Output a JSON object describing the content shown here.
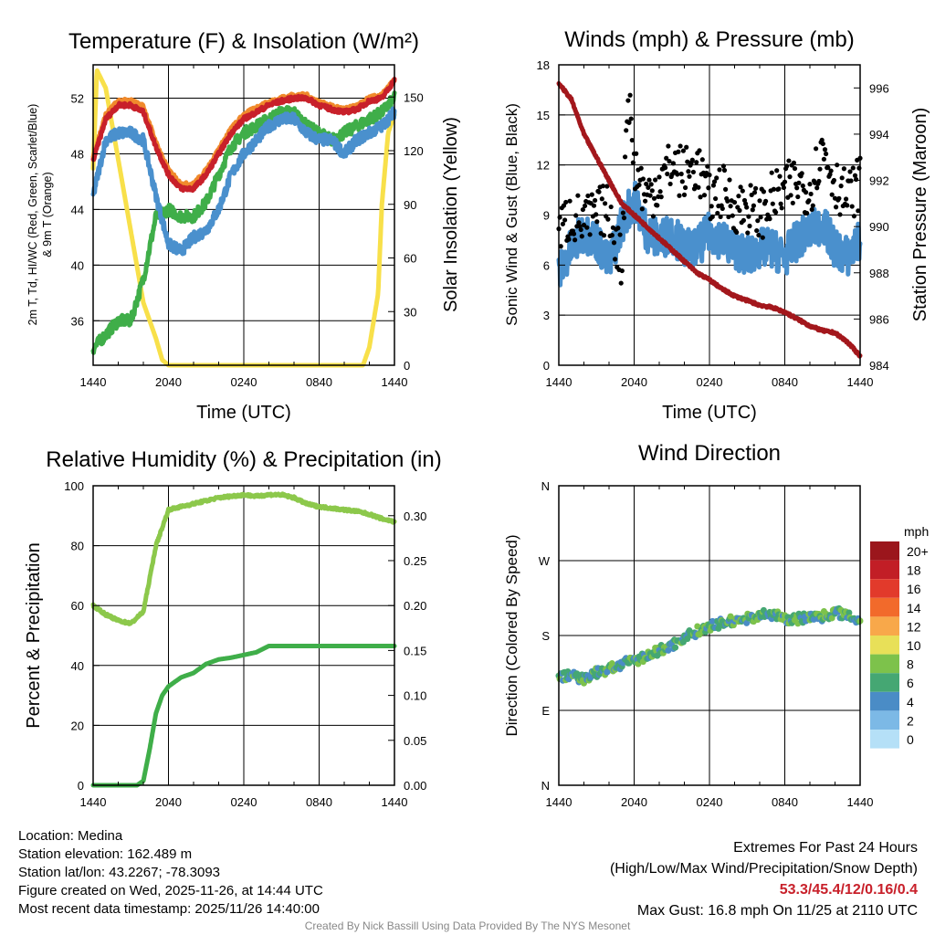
{
  "chart_data": [
    {
      "type": "line",
      "title": "Temperature (F) & Insolation (W/m²)",
      "xlabel": "Time (UTC)",
      "ylabel": [
        "2m T, Td, HI/WC (Red, Green, Scarlet/Blue)",
        "& 9m T (Orange)"
      ],
      "y2label": "Solar Insolation (Yellow)",
      "xticks": [
        "1440",
        "2040",
        "0240",
        "0840",
        "1440"
      ],
      "xrange_hours": [
        0,
        24
      ],
      "ylim": [
        32.8,
        54.4
      ],
      "yticks": [
        36,
        40,
        44,
        48,
        52
      ],
      "y2lim": [
        0,
        168
      ],
      "y2ticks": [
        0,
        30,
        60,
        90,
        120,
        150
      ],
      "grid": true,
      "series": [
        {
          "name": "Solar Insolation",
          "axis": "right",
          "color": "#f8e04a",
          "x": [
            0,
            0.3,
            1,
            2,
            3,
            4,
            5,
            5.5,
            6,
            21.5,
            22,
            22.7,
            23,
            23.5,
            24
          ],
          "values": [
            110,
            165,
            155,
            115,
            75,
            35,
            15,
            3,
            0,
            0,
            10,
            40,
            90,
            130,
            140
          ]
        },
        {
          "name": "HI/WC",
          "axis": "left",
          "color": "#3fae49",
          "x": [
            0,
            1,
            2,
            3,
            4,
            5,
            6,
            7,
            8,
            9,
            10,
            11,
            12,
            13,
            14,
            15,
            16,
            17,
            18,
            19,
            20,
            21,
            22,
            23,
            24
          ],
          "values": [
            34,
            35,
            36,
            36,
            39,
            43.5,
            44,
            43.5,
            43.5,
            44.5,
            46.5,
            48.5,
            49.5,
            50,
            50.5,
            51,
            51,
            50,
            49.5,
            49,
            49.5,
            50,
            50.5,
            51,
            52
          ]
        },
        {
          "name": "Dew Point",
          "axis": "left",
          "color": "#4a90cd",
          "x": [
            0,
            1,
            2,
            3,
            4,
            5,
            6,
            7,
            8,
            9,
            10,
            11,
            12,
            13,
            14,
            15,
            16,
            17,
            18,
            19,
            20,
            21,
            22,
            23,
            24
          ],
          "values": [
            45,
            49,
            49.5,
            49.5,
            49,
            45,
            41.5,
            41,
            42,
            42.5,
            44,
            46.5,
            48,
            49,
            50,
            50.5,
            50.5,
            49.5,
            49,
            49,
            48,
            49,
            49.5,
            50,
            51
          ]
        },
        {
          "name": "9m T",
          "axis": "left",
          "color": "#f08a2c",
          "x": [
            0,
            1,
            2,
            3,
            4,
            5,
            6,
            7,
            8,
            9,
            10,
            11,
            12,
            13,
            14,
            15,
            16,
            17,
            18,
            19,
            20,
            21,
            22,
            23,
            24
          ],
          "values": [
            47.8,
            50.8,
            51.8,
            51.8,
            51.4,
            48.8,
            46.8,
            45.8,
            45.8,
            46.8,
            48.3,
            49.8,
            50.8,
            51.3,
            51.7,
            52,
            52.2,
            52.2,
            51.7,
            51.4,
            51.2,
            51.4,
            52,
            52.2,
            53.3
          ]
        },
        {
          "name": "2m T",
          "axis": "left",
          "color": "#c8202a",
          "x": [
            0,
            1,
            2,
            3,
            4,
            5,
            6,
            7,
            8,
            9,
            10,
            11,
            12,
            13,
            14,
            15,
            16,
            17,
            18,
            19,
            20,
            21,
            22,
            23,
            24
          ],
          "values": [
            47.5,
            50.5,
            51.5,
            51.5,
            51,
            48.5,
            46.5,
            45.5,
            45.5,
            46.5,
            48,
            49.5,
            50.5,
            51,
            51.5,
            51.8,
            52,
            52,
            51.5,
            51.2,
            51,
            51.2,
            51.8,
            52,
            53.3
          ]
        }
      ]
    },
    {
      "type": "line",
      "title": "Winds (mph) & Pressure (mb)",
      "xlabel": "Time (UTC)",
      "ylabel": "Sonic Wind & Gust (Blue, Black)",
      "y2label": "Station Pressure (Maroon)",
      "xticks": [
        "1440",
        "2040",
        "0240",
        "0840",
        "1440"
      ],
      "xrange_hours": [
        0,
        24
      ],
      "ylim": [
        0,
        18
      ],
      "yticks": [
        0,
        3,
        6,
        9,
        12,
        15,
        18
      ],
      "y2lim": [
        984,
        997
      ],
      "y2ticks": [
        984,
        986,
        988,
        990,
        992,
        994,
        996
      ],
      "grid": true,
      "series": [
        {
          "name": "Sonic Wind",
          "axis": "left",
          "color": "#4a90cd",
          "x": [
            0,
            1,
            2,
            3,
            4,
            5,
            6,
            7,
            8,
            9,
            10,
            11,
            12,
            13,
            14,
            15,
            16,
            17,
            18,
            19,
            20,
            21,
            22,
            23,
            24
          ],
          "values": [
            5.5,
            7,
            8,
            7.5,
            6,
            8.5,
            10,
            8,
            7.5,
            8,
            7,
            7,
            8,
            7.5,
            7,
            6.5,
            7,
            7,
            6.5,
            7.5,
            8,
            8.5,
            7,
            6.5,
            7.5
          ]
        },
        {
          "name": "Gust",
          "axis": "left",
          "color": "#000000",
          "marker": "dot",
          "x": [
            0,
            1,
            2,
            3,
            4,
            5,
            5.5,
            6,
            7,
            8,
            9,
            10,
            11,
            12,
            13,
            14,
            15,
            16,
            17,
            18,
            19,
            20,
            21,
            22,
            23,
            24
          ],
          "values": [
            8,
            9,
            8.5,
            9,
            9.5,
            6,
            16.8,
            12,
            10,
            11,
            12,
            11.5,
            12,
            10,
            10.5,
            9.5,
            9.5,
            9,
            10,
            10.5,
            11,
            10.5,
            13,
            11,
            10,
            11
          ]
        },
        {
          "name": "Station Pressure",
          "axis": "right",
          "color": "#a3171c",
          "x": [
            0,
            1,
            2,
            3,
            4,
            5,
            6,
            7,
            8,
            9,
            10,
            11,
            12,
            13,
            14,
            15,
            16,
            17,
            18,
            19,
            20,
            21,
            22,
            23,
            24
          ],
          "values": [
            996.2,
            995.5,
            994,
            993,
            992,
            991,
            990.5,
            990,
            989.5,
            989,
            988.5,
            988,
            987.7,
            987.3,
            987,
            986.8,
            986.6,
            986.5,
            986.3,
            986,
            985.7,
            985.5,
            985.4,
            985,
            984.4
          ]
        }
      ]
    },
    {
      "type": "line",
      "title": "Relative Humidity (%) & Precipitation (in)",
      "xlabel": "",
      "ylabel": "Percent & Precipitation",
      "xticks": [
        "1440",
        "2040",
        "0240",
        "0840",
        "1440"
      ],
      "xrange_hours": [
        0,
        24
      ],
      "ylim": [
        0,
        100
      ],
      "yticks": [
        0,
        20,
        40,
        60,
        80,
        100
      ],
      "y2lim": [
        0,
        0.3333
      ],
      "y2ticks": [
        "0.00",
        "0.05",
        "0.10",
        "0.15",
        "0.20",
        "0.25",
        "0.30"
      ],
      "grid": true,
      "series": [
        {
          "name": "Relative Humidity",
          "axis": "left",
          "color": "#8cc84b",
          "x": [
            0,
            1,
            2,
            3,
            4,
            5,
            6,
            7,
            8,
            9,
            10,
            11,
            12,
            13,
            14,
            15,
            16,
            17,
            18,
            19,
            20,
            21,
            22,
            23,
            24
          ],
          "values": [
            60,
            57,
            55,
            54,
            58,
            80,
            92,
            93,
            94,
            95,
            96,
            96.5,
            97,
            96.5,
            97,
            97,
            96,
            94,
            93,
            92.5,
            92,
            91.5,
            90.5,
            89,
            88
          ]
        },
        {
          "name": "Precipitation",
          "axis": "right",
          "color": "#3fae49",
          "x": [
            0,
            3.5,
            4,
            4.5,
            5,
            5.5,
            6,
            7,
            8,
            9,
            10,
            11,
            12,
            13,
            14,
            24
          ],
          "values": [
            0,
            0,
            0.005,
            0.04,
            0.08,
            0.1,
            0.11,
            0.12,
            0.125,
            0.135,
            0.14,
            0.142,
            0.145,
            0.148,
            0.155,
            0.155
          ]
        }
      ]
    },
    {
      "type": "scatter",
      "title": "Wind Direction",
      "ylabel": "Direction (Colored By Speed)",
      "xticks": [
        "1440",
        "2040",
        "0240",
        "0840",
        "1440"
      ],
      "xrange_hours": [
        0,
        24
      ],
      "ylim": [
        0,
        360
      ],
      "yticks": [
        "N",
        "E",
        "S",
        "W",
        "N"
      ],
      "grid": true,
      "series": [
        {
          "name": "Direction",
          "x": [
            0,
            1,
            2,
            3,
            4,
            5,
            6,
            7,
            8,
            9,
            10,
            11,
            12,
            13,
            14,
            15,
            16,
            17,
            18,
            19,
            20,
            21,
            22,
            23,
            24
          ],
          "values": [
            130,
            132,
            128,
            135,
            140,
            145,
            150,
            155,
            162,
            168,
            178,
            185,
            190,
            195,
            198,
            200,
            205,
            205,
            200,
            200,
            202,
            203,
            208,
            205,
            198
          ]
        }
      ],
      "legend": {
        "title": "mph",
        "labels": [
          "20+",
          "18",
          "16",
          "14",
          "12",
          "10",
          "8",
          "6",
          "4",
          "2",
          "0"
        ],
        "colors": [
          "#9b161c",
          "#c21e26",
          "#e23a2b",
          "#f26a2b",
          "#f8a84a",
          "#e8e058",
          "#7dc24b",
          "#45a773",
          "#4a8cc6",
          "#7cb9e6",
          "#b5e0f7"
        ]
      }
    }
  ],
  "info": {
    "location": "Location: Medina",
    "elevation": "Station elevation: 162.489 m",
    "latlon": "Station lat/lon: 43.2267; -78.3093",
    "created": "Figure created on Wed, 2025-11-26, at 14:44 UTC",
    "recent": "Most recent data timestamp: 2025/11/26 14:40:00"
  },
  "extremes": {
    "title": "Extremes For Past 24 Hours",
    "subtitle": "(High/Low/Max Wind/Precipitation/Snow Depth)",
    "values": "53.3/45.4/12/0.16/0.4",
    "max_gust": "Max Gust: 16.8 mph On 11/25 at 2110 UTC"
  },
  "credit": "Created By Nick Bassill Using Data Provided By The NYS Mesonet"
}
